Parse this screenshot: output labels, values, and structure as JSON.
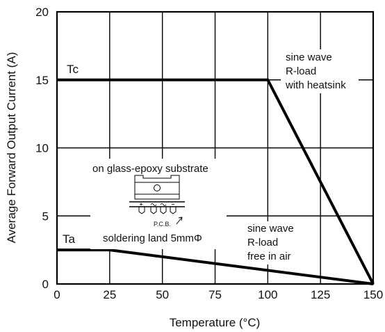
{
  "chart_data": {
    "type": "line",
    "xlabel": "Temperature (°C)",
    "ylabel": "Average Forward Output Current (A)",
    "xlim": [
      0,
      150
    ],
    "ylim": [
      0,
      20
    ],
    "xticks": [
      0,
      25,
      50,
      75,
      100,
      125,
      150
    ],
    "yticks": [
      0,
      5,
      10,
      15,
      20
    ],
    "xtick_labels": [
      "0",
      "25",
      "50",
      "75",
      "100",
      "125",
      "150"
    ],
    "ytick_labels": [
      "0",
      "5",
      "10",
      "15",
      "20"
    ],
    "grid": true,
    "series": [
      {
        "name": "Tc",
        "x": [
          0,
          100,
          150
        ],
        "y": [
          15,
          15,
          0
        ]
      },
      {
        "name": "Ta",
        "x": [
          0,
          25,
          150
        ],
        "y": [
          2.5,
          2.5,
          0
        ]
      }
    ],
    "annotations": {
      "tc": [
        "sine wave",
        "R-load",
        "with heatsink"
      ],
      "ta": [
        "sine wave",
        "R-load",
        "free in air"
      ],
      "substrate": "on glass-epoxy substrate",
      "pcb": "P.C.B.",
      "land": "soldering land 5mmΦ"
    },
    "line_color": "#000000"
  }
}
